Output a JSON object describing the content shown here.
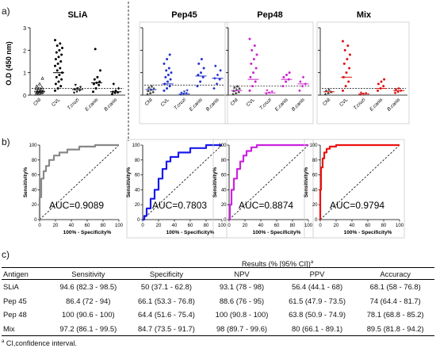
{
  "panel_labels": {
    "a": "a)",
    "b": "b)",
    "c": "c)"
  },
  "chart_data": [
    {
      "type": "scatter",
      "panel": "a",
      "ylabel": "O.D (450 nm)",
      "ylim": [
        0,
        3
      ],
      "yticks": [
        "0",
        "1",
        "2",
        "3"
      ],
      "categories": [
        "CNI",
        "CVL",
        "T.cruzi",
        "E.canis",
        "B.canis"
      ],
      "subplots": [
        {
          "title": "SLiA",
          "color": "#000000",
          "cutoff": 0.3,
          "box": false,
          "medians": [
            0.15,
            1.0,
            0.25,
            0.55,
            0.15
          ],
          "points": [
            [
              0.05,
              0.08,
              0.1,
              0.12,
              0.12,
              0.15,
              0.15,
              0.18,
              0.2,
              0.22,
              0.25,
              0.28,
              0.3,
              0.35,
              0.4,
              0.5,
              0.75
            ],
            [
              0.2,
              0.3,
              0.4,
              0.5,
              0.6,
              0.7,
              0.8,
              0.9,
              1.0,
              1.1,
              1.2,
              1.3,
              1.4,
              1.5,
              1.6,
              1.7,
              1.8,
              1.9,
              2.0,
              2.1,
              2.2,
              2.3,
              2.45
            ],
            [
              0.1,
              0.15,
              0.2,
              0.25,
              0.3,
              0.35,
              0.45
            ],
            [
              0.15,
              0.3,
              0.45,
              0.5,
              0.55,
              0.6,
              0.7,
              0.8,
              1.1,
              2.05
            ],
            [
              0.05,
              0.1,
              0.12,
              0.15,
              0.2,
              0.3,
              0.5
            ]
          ]
        },
        {
          "title": "Pep45",
          "color": "#2233cc",
          "cutoff": 0.45,
          "box": true,
          "medians": [
            0.25,
            0.5,
            0.05,
            0.85,
            0.75
          ],
          "points": [
            [
              0.05,
              0.1,
              0.15,
              0.2,
              0.25,
              0.3,
              0.35,
              0.4
            ],
            [
              0.2,
              0.3,
              0.4,
              0.5,
              0.6,
              0.7,
              0.8,
              0.9,
              1.0,
              1.1,
              1.2,
              1.4,
              1.6,
              1.8
            ],
            [
              0.02,
              0.05,
              0.08,
              0.1,
              0.15,
              0.2
            ],
            [
              0.4,
              0.6,
              0.8,
              0.9,
              1.0,
              1.2,
              1.4,
              1.6
            ],
            [
              0.3,
              0.5,
              0.7,
              0.75,
              0.9,
              1.1,
              1.3
            ]
          ]
        },
        {
          "title": "Pep48",
          "color": "#cc22cc",
          "cutoff": 0.4,
          "box": true,
          "medians": [
            0.2,
            0.7,
            0.1,
            0.7,
            0.5
          ],
          "points": [
            [
              0.05,
              0.1,
              0.15,
              0.2,
              0.25,
              0.3,
              0.35,
              0.4
            ],
            [
              0.2,
              0.4,
              0.6,
              0.8,
              1.0,
              1.2,
              1.4,
              1.6,
              1.8,
              2.0,
              2.2,
              2.5
            ],
            [
              0.05,
              0.1,
              0.15,
              0.2
            ],
            [
              0.4,
              0.6,
              0.7,
              0.8,
              0.9,
              1.0
            ],
            [
              0.2,
              0.4,
              0.5,
              0.6,
              0.8
            ]
          ]
        },
        {
          "title": "Mix",
          "color": "#dd1111",
          "cutoff": 0.3,
          "box": true,
          "medians": [
            0.15,
            0.8,
            0.05,
            0.3,
            0.2
          ],
          "points": [
            [
              0.05,
              0.1,
              0.15,
              0.2,
              0.25
            ],
            [
              0.2,
              0.4,
              0.6,
              0.8,
              1.0,
              1.2,
              1.4,
              1.6,
              1.8,
              2.0,
              2.2,
              2.4
            ],
            [
              0.02,
              0.05,
              0.08,
              0.1
            ],
            [
              0.2,
              0.3,
              0.4,
              0.5,
              0.6,
              0.7
            ],
            [
              0.1,
              0.15,
              0.2,
              0.25,
              0.3
            ]
          ]
        }
      ]
    },
    {
      "type": "line",
      "panel": "b",
      "xlabel": "100% - Specificity%",
      "ylabel": "Sensitivity%",
      "xlim": [
        0,
        100
      ],
      "ylim": [
        0,
        100
      ],
      "ticks": [
        "0",
        "20",
        "40",
        "60",
        "80",
        "100"
      ],
      "curves": [
        {
          "color": "#888888",
          "auc": "AUC=0.9089",
          "x": [
            0,
            0,
            2,
            2,
            5,
            5,
            8,
            8,
            12,
            12,
            18,
            18,
            25,
            25,
            35,
            35,
            50,
            50,
            70,
            70,
            100
          ],
          "y": [
            0,
            30,
            30,
            55,
            55,
            65,
            65,
            72,
            72,
            80,
            80,
            86,
            86,
            90,
            90,
            94,
            94,
            98,
            98,
            100,
            100
          ]
        },
        {
          "color": "#1a1aee",
          "auc": "AUC=0.7803",
          "x": [
            0,
            2,
            2,
            5,
            5,
            10,
            10,
            15,
            15,
            20,
            20,
            25,
            25,
            30,
            30,
            35,
            35,
            45,
            45,
            60,
            60,
            80,
            80,
            100
          ],
          "y": [
            0,
            0,
            5,
            5,
            15,
            15,
            28,
            28,
            40,
            40,
            55,
            55,
            68,
            68,
            78,
            78,
            84,
            84,
            90,
            90,
            96,
            96,
            100,
            100
          ]
        },
        {
          "color": "#cc22dd",
          "auc": "AUC=0.8874",
          "x": [
            0,
            1,
            1,
            3,
            3,
            6,
            6,
            10,
            10,
            14,
            14,
            18,
            18,
            22,
            22,
            28,
            28,
            35,
            35,
            100
          ],
          "y": [
            0,
            0,
            20,
            20,
            40,
            40,
            55,
            55,
            68,
            68,
            78,
            78,
            86,
            86,
            92,
            92,
            97,
            97,
            100,
            100
          ]
        },
        {
          "color": "#ee1111",
          "auc": "AUC=0.9794",
          "x": [
            0,
            0,
            1,
            1,
            3,
            3,
            5,
            5,
            8,
            8,
            12,
            12,
            20,
            20,
            100
          ],
          "y": [
            0,
            40,
            40,
            70,
            70,
            82,
            82,
            90,
            90,
            95,
            95,
            98,
            98,
            100,
            100
          ]
        }
      ]
    }
  ],
  "table": {
    "title": "Results (% [95% CI])",
    "title_sup": "a",
    "headers": [
      "Antigen",
      "Sensitivity",
      "Specificity",
      "NPV",
      "PPV",
      "Accuracy"
    ],
    "rows": [
      [
        "SLiA",
        "94.6 (82.3 - 98.5)",
        "50 (37.1 - 62.8)",
        "93.1 (78 - 98)",
        "56.4 (44.1 - 68)",
        "68.1 (58 - 76.8)"
      ],
      [
        "Pep 45",
        "86.4 (72 - 94)",
        "66.1 (53.3 - 76.8)",
        "88.6 (76 - 95)",
        "61.5 (47.9 - 73.5)",
        "74 (64.4 - 81.7)"
      ],
      [
        "Pep 48",
        "100 (90.6 - 100)",
        "64.4 (51.6 - 75.4)",
        "100 (90.8 - 100)",
        "63.8 (50.9 - 74.9)",
        "78.1 (68.8 - 85.2)"
      ],
      [
        "Mix",
        "97.2 (86.1 - 99.5)",
        "84.7 (73.5 - 91.7)",
        "98 (89.7 - 99.6)",
        "80 (66.1 - 89.1)",
        "89.5 (81.8 - 94.2)"
      ]
    ],
    "footnote_sup": "a",
    "footnote": " CI,confidence interval."
  }
}
